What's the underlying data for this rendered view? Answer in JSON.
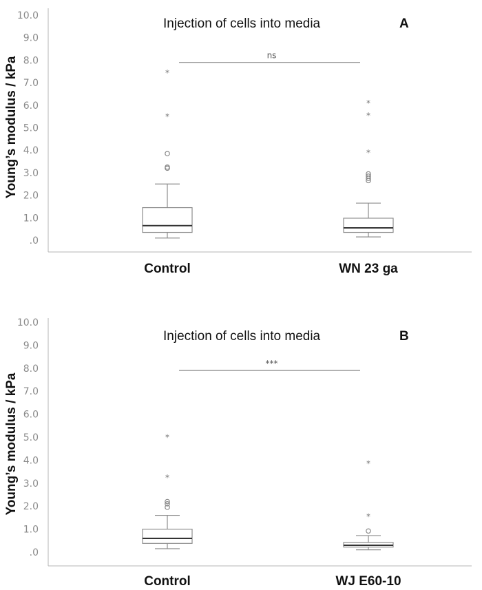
{
  "chart_data": [
    {
      "type": "box",
      "panel": "A",
      "title": "Injection of cells into media",
      "ylabel": "Young’s modulus / kPa",
      "ylim": [
        0,
        10
      ],
      "yticks": [
        ".0",
        "1.0",
        "2.0",
        "3.0",
        "4.0",
        "5.0",
        "6.0",
        "7.0",
        "8.0",
        "9.0",
        "10.0"
      ],
      "categories": [
        "Control",
        "WN 23 ga"
      ],
      "boxes": [
        {
          "name": "Control",
          "min": 0.1,
          "q1": 0.35,
          "median": 0.65,
          "q3": 1.45,
          "max": 2.5,
          "outliers_circle": [
            3.2,
            3.25,
            3.85
          ],
          "outliers_star": [
            5.55,
            7.5
          ]
        },
        {
          "name": "WN 23 ga",
          "min": 0.15,
          "q1": 0.35,
          "median": 0.55,
          "q3": 0.98,
          "max": 1.65,
          "outliers_circle": [
            2.65,
            2.75,
            2.85,
            2.95
          ],
          "outliers_star": [
            3.95,
            5.6,
            6.15
          ]
        }
      ],
      "significance": {
        "label": "ns",
        "y": 7.9
      }
    },
    {
      "type": "box",
      "panel": "B",
      "title": "Injection of cells into media",
      "ylabel": "Young’s modulus / kPa",
      "ylim": [
        0,
        10
      ],
      "yticks": [
        ".0",
        "1.0",
        "2.0",
        "3.0",
        "4.0",
        "5.0",
        "6.0",
        "7.0",
        "8.0",
        "9.0",
        "10.0"
      ],
      "categories": [
        "Control",
        "WJ E60-10"
      ],
      "boxes": [
        {
          "name": "Control",
          "min": 0.15,
          "q1": 0.38,
          "median": 0.6,
          "q3": 1.0,
          "max": 1.6,
          "outliers_circle": [
            1.95,
            2.1,
            2.2
          ],
          "outliers_star": [
            3.3,
            5.05
          ]
        },
        {
          "name": "WJ E60-10",
          "min": 0.1,
          "q1": 0.22,
          "median": 0.3,
          "q3": 0.42,
          "max": 0.72,
          "outliers_circle": [
            0.92
          ],
          "outliers_star": [
            1.6,
            3.9
          ]
        }
      ],
      "significance": {
        "label": "***",
        "y": 7.9
      }
    }
  ]
}
